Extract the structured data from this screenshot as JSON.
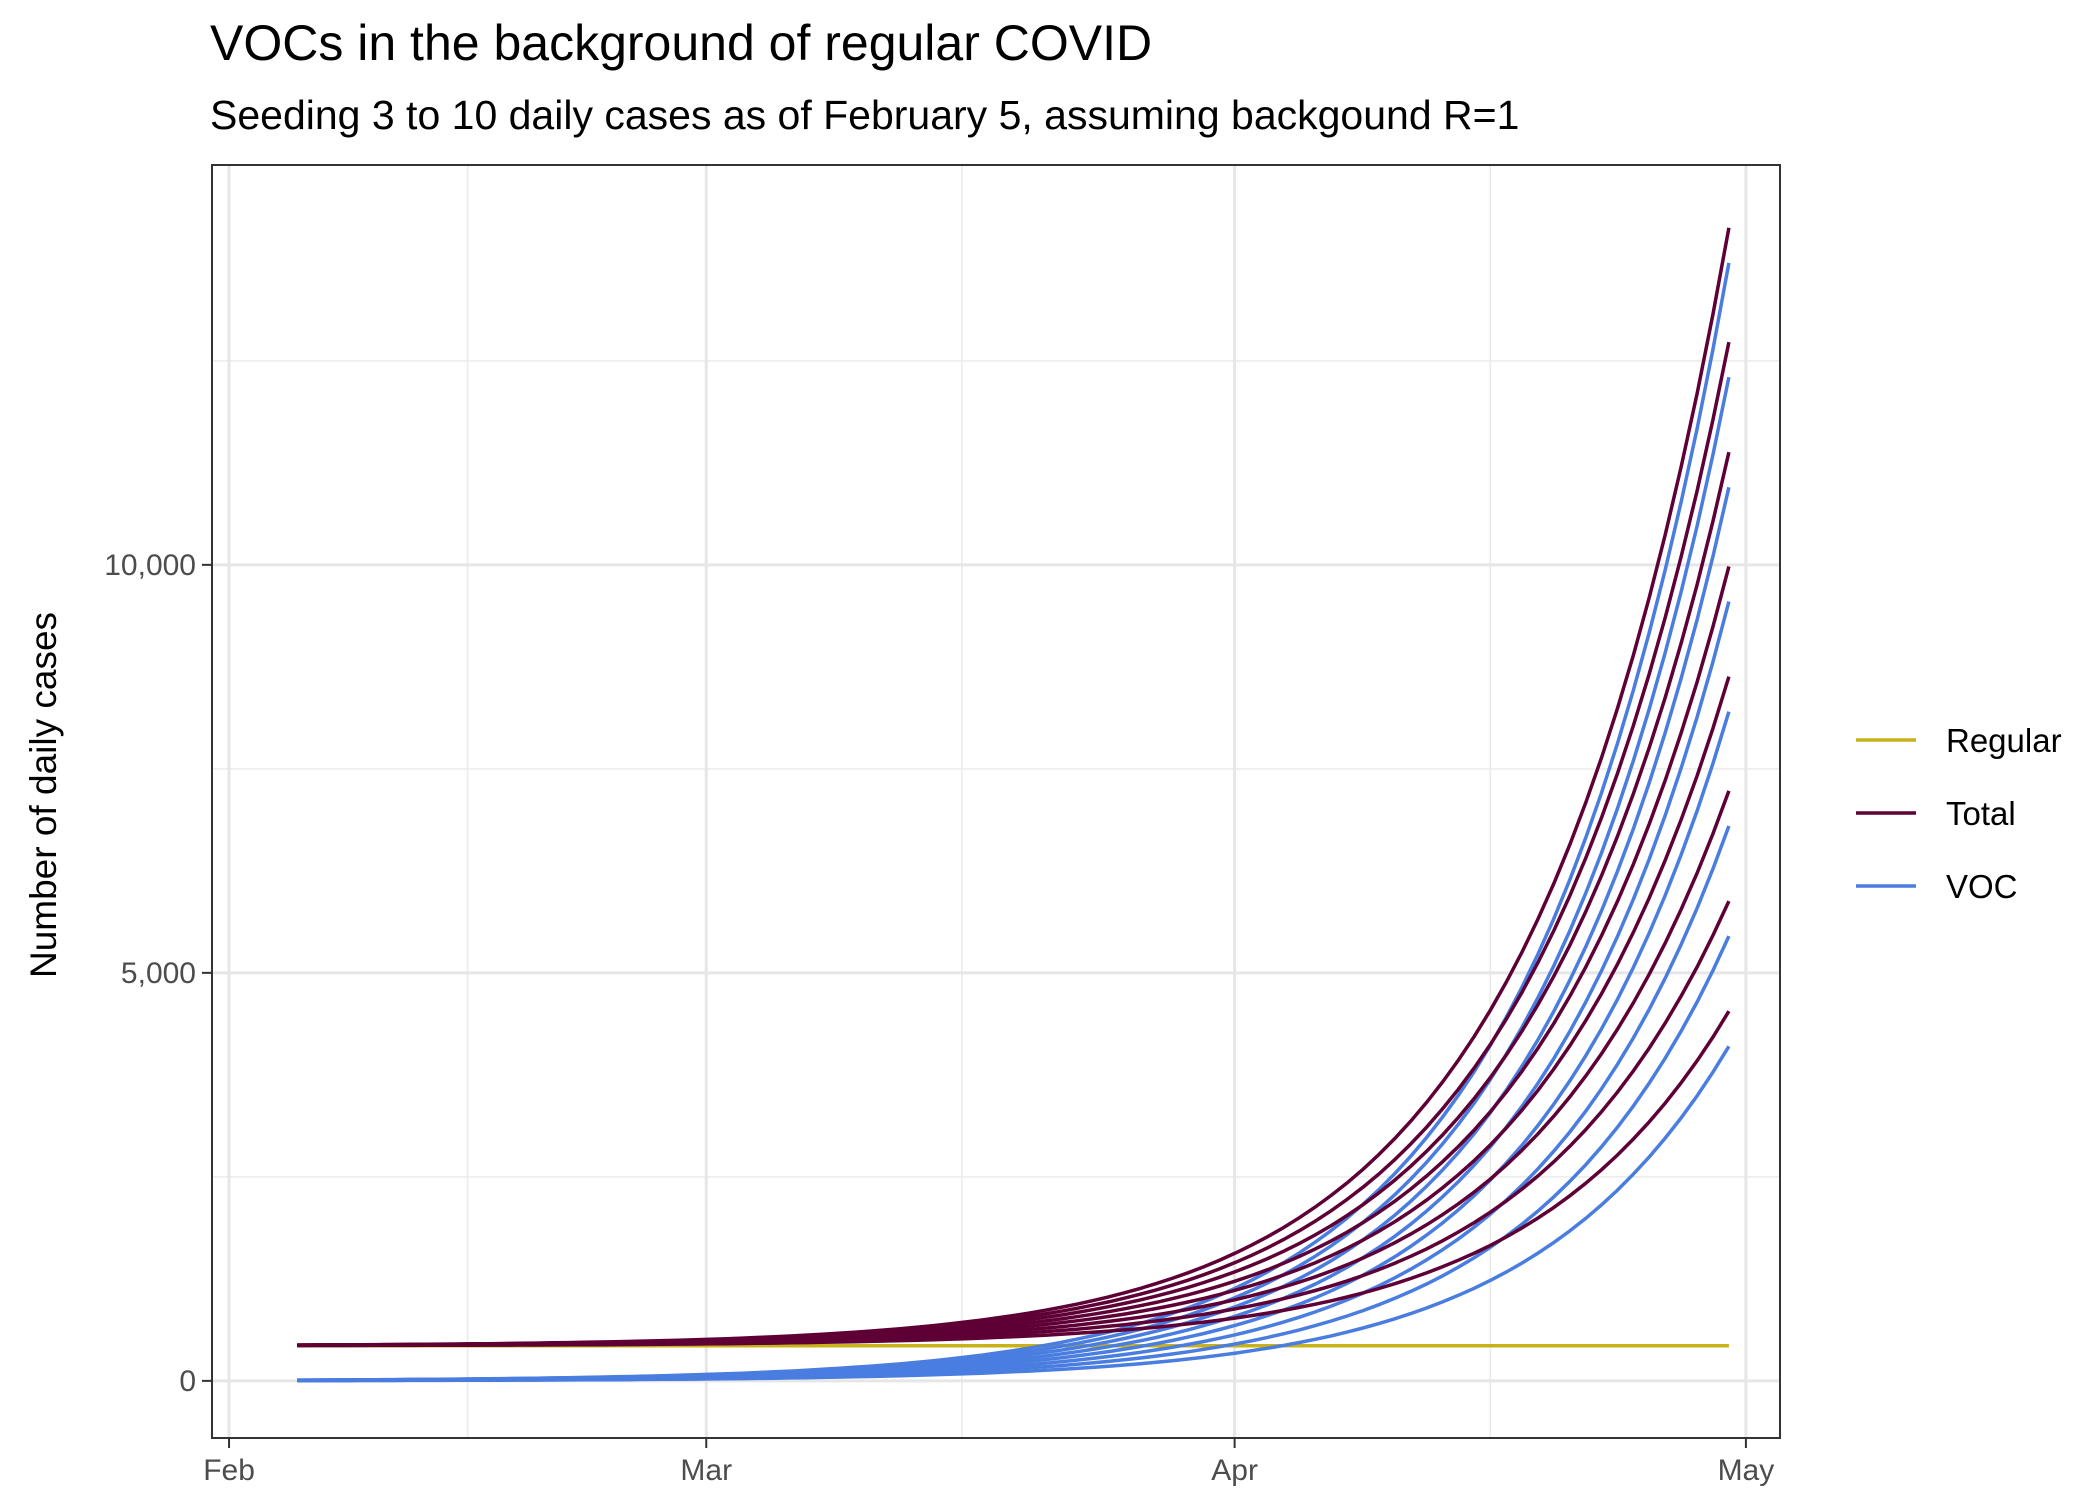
{
  "chart_data": {
    "type": "line",
    "title": "VOCs in the background of regular COVID",
    "subtitle": "Seeding 3 to 10 daily cases as of February 5, assuming backgound R=1",
    "xlabel": "",
    "ylabel": "Number of daily cases",
    "x_start": "Feb 5",
    "x_end": "Apr 30",
    "xlim": [
      "Jan 31",
      "May 3"
    ],
    "ylim": [
      -700,
      14900
    ],
    "x_ticks": [
      {
        "label": "Feb",
        "date": "Feb 1"
      },
      {
        "label": "Mar",
        "date": "Mar 1"
      },
      {
        "label": "Apr",
        "date": "Apr 1"
      },
      {
        "label": "May",
        "date": "May 1"
      }
    ],
    "x_minor_ticks": [
      "Feb 15",
      "Mar 16",
      "Apr 16"
    ],
    "y_ticks": [
      {
        "label": "0",
        "value": 0
      },
      {
        "label": "5,000",
        "value": 5000
      },
      {
        "label": "10,000",
        "value": 10000
      }
    ],
    "y_minor_ticks": [
      2500,
      7500,
      12500
    ],
    "grid": true,
    "legend_position": "right",
    "regular_cases": 430,
    "voc_seeds_at_start": [
      3,
      4,
      5,
      6,
      7,
      8,
      9,
      10
    ],
    "voc_cases_at_end": [
      4100,
      5450,
      6800,
      8200,
      9550,
      10950,
      12300,
      13700
    ],
    "series": [
      {
        "name": "Regular",
        "color": "#C9B11A",
        "start": 430,
        "end": 430
      },
      {
        "name": "Total",
        "color": "#5E0035"
      },
      {
        "name": "VOC",
        "color": "#4A7DE0"
      }
    ]
  }
}
